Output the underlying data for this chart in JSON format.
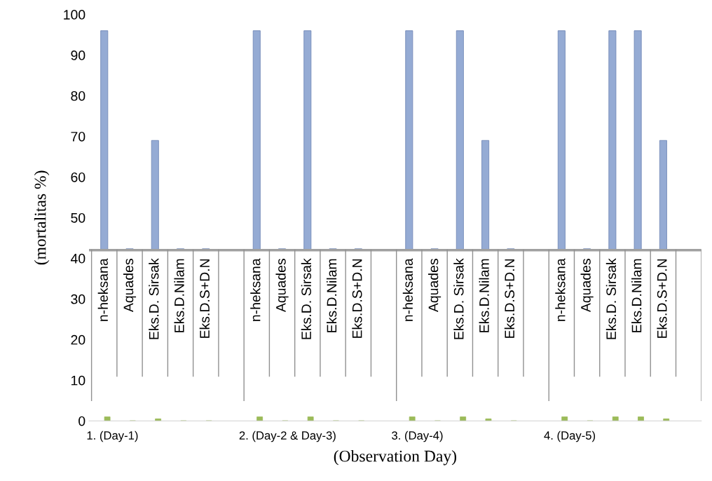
{
  "chart_data": {
    "type": "bar",
    "xlabel": "(Observation Day)",
    "ylabel": "(mortalitas %)",
    "categories": [
      "n-heksana",
      "Aquades",
      "Eks.D. Sirsak",
      "Eks.D.Nilam",
      "Eks.D.S+D.N",
      null,
      "n-heksana",
      "Aquades",
      "Eks.D. Sirsak",
      "Eks.D.Nilam",
      "Eks.D.S+D.N",
      null,
      "n-heksana",
      "Aquades",
      "Eks.D. Sirsak",
      "Eks.D.Nilam",
      "Eks.D.S+D.N",
      null,
      "n-heksana",
      "Aquades",
      "Eks.D. Sirsak",
      "Eks.D.Nilam",
      "Eks.D.S+D.N",
      null
    ],
    "series": [
      {
        "color": "#95abd4",
        "base": [
          42,
          42,
          42,
          42,
          42,
          null,
          42,
          42,
          42,
          42,
          42,
          null,
          42,
          42,
          42,
          42,
          42,
          null,
          42,
          42,
          42,
          42,
          42,
          null
        ],
        "values": [
          54,
          0,
          27,
          0,
          0,
          null,
          54,
          0,
          54,
          0,
          0,
          null,
          54,
          0,
          54,
          27,
          0,
          null,
          54,
          0,
          54,
          54,
          27,
          null
        ]
      },
      {
        "color": "#9bbb59",
        "values": [
          1,
          0,
          0.5,
          0,
          0,
          null,
          1,
          0,
          1,
          0,
          0,
          null,
          1,
          0,
          1,
          0.5,
          0,
          null,
          1,
          0,
          1,
          1,
          0.5,
          null
        ]
      }
    ],
    "annotations": [
      "1. (Day-1)",
      "2. (Day-2 & Day-3)",
      "3. (Day-4)",
      "4. (Day-5)"
    ],
    "ylim": [
      0,
      100
    ],
    "yticks": [
      0,
      10,
      20,
      30,
      40,
      50,
      60,
      70,
      80,
      90,
      100
    ],
    "grid": false,
    "legend": false
  }
}
